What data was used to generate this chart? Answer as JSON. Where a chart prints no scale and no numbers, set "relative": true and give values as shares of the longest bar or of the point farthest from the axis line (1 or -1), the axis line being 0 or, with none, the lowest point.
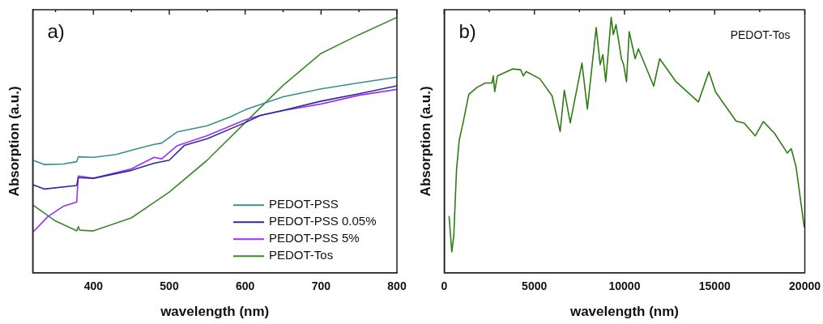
{
  "chart_data": [
    {
      "type": "line",
      "relative": true,
      "xlabel": "wavelength (nm)",
      "ylabel": "Absorption (a.u.)",
      "annotations": [
        "a)"
      ],
      "xlim": [
        320,
        800
      ],
      "xticks": [
        {
          "value": 350,
          "label": null
        },
        400,
        {
          "value": 450,
          "label": null
        },
        500,
        {
          "value": 550,
          "label": null
        },
        600,
        {
          "value": 650,
          "label": null
        },
        700,
        {
          "value": 750,
          "label": null
        },
        800
      ],
      "legend": "bottom right",
      "marker": "none",
      "line_style": "solid",
      "series": [
        {
          "name": "PEDOT-PSS",
          "color": "#3a8f8a",
          "x": [
            320,
            335,
            360,
            378,
            380,
            400,
            430,
            460,
            480,
            490,
            510,
            550,
            580,
            600,
            650,
            700,
            750,
            800
          ],
          "values": [
            0.441,
            0.424,
            0.426,
            0.435,
            0.454,
            0.452,
            0.463,
            0.488,
            0.503,
            0.508,
            0.551,
            0.576,
            0.61,
            0.638,
            0.689,
            0.72,
            0.744,
            0.766
          ]
        },
        {
          "name": "PEDOT-PSS 0.05%",
          "color": "#2b2b9a",
          "x": [
            320,
            335,
            378,
            380,
            400,
            450,
            480,
            500,
            520,
            550,
            600,
            620,
            650,
            700,
            750,
            800
          ],
          "values": [
            0.345,
            0.328,
            0.342,
            0.373,
            0.37,
            0.401,
            0.429,
            0.441,
            0.499,
            0.525,
            0.588,
            0.616,
            0.636,
            0.672,
            0.701,
            0.732
          ]
        },
        {
          "name": "PEDOT-PSS 5%",
          "color": "#9b30ff",
          "x": [
            320,
            340,
            360,
            378,
            380,
            400,
            450,
            480,
            490,
            510,
            550,
            600,
            620,
            650,
            700,
            750,
            800
          ],
          "values": [
            0.158,
            0.22,
            0.26,
            0.277,
            0.379,
            0.37,
            0.407,
            0.452,
            0.446,
            0.497,
            0.537,
            0.599,
            0.616,
            0.635,
            0.661,
            0.695,
            0.718
          ]
        },
        {
          "name": "PEDOT-Tos",
          "color": "#3a8a2a",
          "x": [
            320,
            350,
            378,
            380,
            382,
            400,
            450,
            500,
            550,
            600,
            650,
            700,
            750,
            800
          ],
          "values": [
            0.266,
            0.203,
            0.164,
            0.181,
            0.167,
            0.164,
            0.215,
            0.316,
            0.441,
            0.588,
            0.734,
            0.859,
            0.932,
            1
          ]
        }
      ]
    },
    {
      "type": "line",
      "relative": true,
      "xlabel": "wavelength (nm)",
      "ylabel": "Absorption (a.u.)",
      "annotations": [
        "b)",
        "PEDOT-Tos"
      ],
      "xlim": [
        0,
        20000
      ],
      "xticks": [
        0,
        {
          "value": 2500,
          "label": null
        },
        5000,
        {
          "value": 7500,
          "label": null
        },
        10000,
        {
          "value": 12500,
          "label": null
        },
        15000,
        {
          "value": 17500,
          "label": null
        },
        20000
      ],
      "marker": "none",
      "line_style": "solid",
      "series": [
        {
          "color": "#2e7d12",
          "x": [
            270,
            420,
            530,
            680,
            830,
            1060,
            1360,
            1820,
            2270,
            2650,
            2720,
            2800,
            2950,
            3780,
            4240,
            4390,
            4540,
            5300,
            5980,
            6430,
            6660,
            6990,
            7640,
            7940,
            8430,
            8650,
            8800,
            8960,
            9260,
            9380,
            9530,
            9830,
            9950,
            10110,
            10260,
            10590,
            10770,
            11620,
            11950,
            12860,
            14100,
            14680,
            15050,
            16190,
            16640,
            17250,
            17700,
            18310,
            19030,
            19250,
            19520,
            19970
          ],
          "values": [
            0.222,
            0.082,
            0.143,
            0.401,
            0.519,
            0.592,
            0.698,
            0.726,
            0.743,
            0.743,
            0.771,
            0.709,
            0.771,
            0.798,
            0.795,
            0.771,
            0.788,
            0.76,
            0.693,
            0.553,
            0.715,
            0.587,
            0.821,
            0.641,
            0.96,
            0.815,
            0.854,
            0.748,
            1,
            0.933,
            0.972,
            0.838,
            0.815,
            0.748,
            0.944,
            0.838,
            0.877,
            0.731,
            0.838,
            0.748,
            0.669,
            0.787,
            0.708,
            0.594,
            0.586,
            0.536,
            0.592,
            0.547,
            0.469,
            0.486,
            0.413,
            0.178
          ]
        }
      ]
    }
  ]
}
